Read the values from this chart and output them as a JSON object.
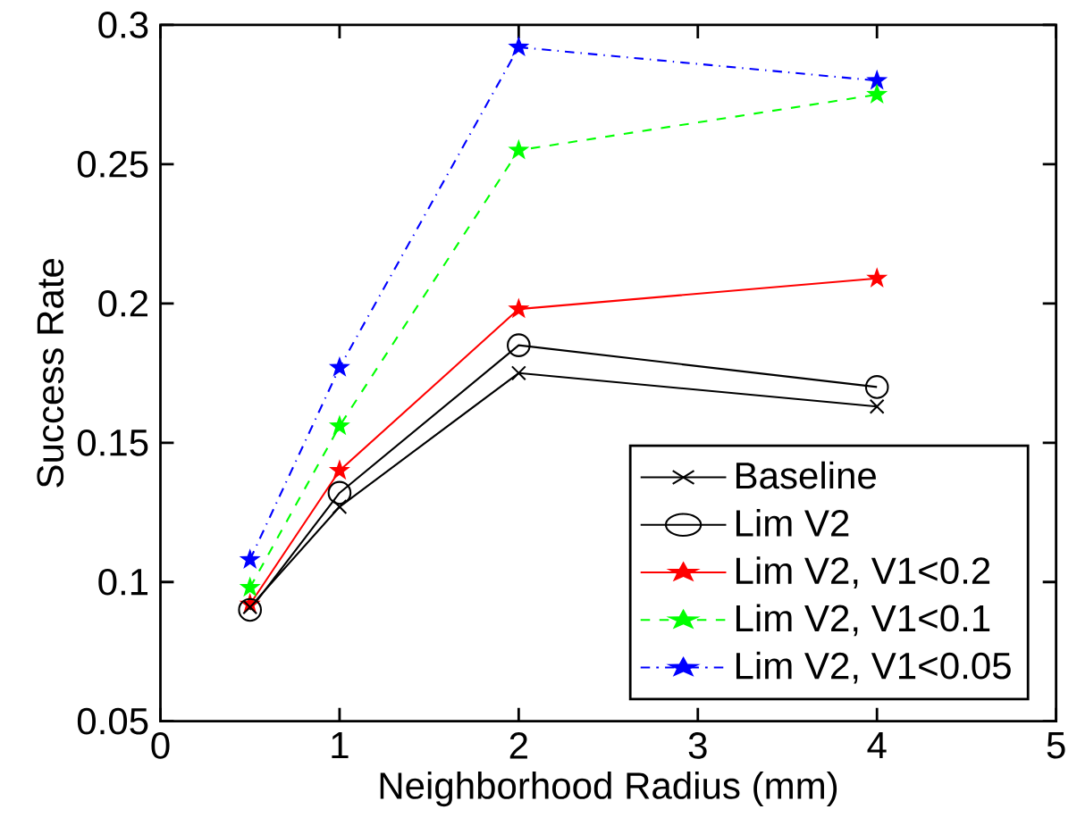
{
  "chart_data": {
    "type": "line",
    "xlabel": "Neighborhood Radius (mm)",
    "ylabel": "Success Rate",
    "xlim": [
      0,
      5
    ],
    "ylim": [
      0.05,
      0.3
    ],
    "xticks": [
      0,
      1,
      2,
      3,
      4,
      5
    ],
    "yticks": [
      0.05,
      0.1,
      0.15,
      0.2,
      0.25,
      0.3
    ],
    "x": [
      0.5,
      1,
      2,
      4
    ],
    "legend": "bottom right",
    "series": [
      {
        "name": "Baseline",
        "color": "#000000",
        "marker": "cross",
        "line_style": "solid",
        "values": [
          0.091,
          0.127,
          0.175,
          0.163
        ]
      },
      {
        "name": "Lim V2",
        "color": "#000000",
        "marker": "circle",
        "line_style": "solid",
        "values": [
          0.09,
          0.132,
          0.185,
          0.17
        ]
      },
      {
        "name": "Lim V2, V1<0.2",
        "color": "#ff0000",
        "marker": "star",
        "line_style": "solid",
        "values": [
          0.092,
          0.14,
          0.198,
          0.209
        ]
      },
      {
        "name": "Lim V2, V1<0.1",
        "color": "#00ff00",
        "marker": "star",
        "line_style": "dashed",
        "values": [
          0.098,
          0.156,
          0.255,
          0.275
        ]
      },
      {
        "name": "Lim V2, V1<0.05",
        "color": "#0000ff",
        "marker": "star",
        "line_style": "dashdot",
        "values": [
          0.108,
          0.177,
          0.292,
          0.28
        ]
      }
    ]
  }
}
